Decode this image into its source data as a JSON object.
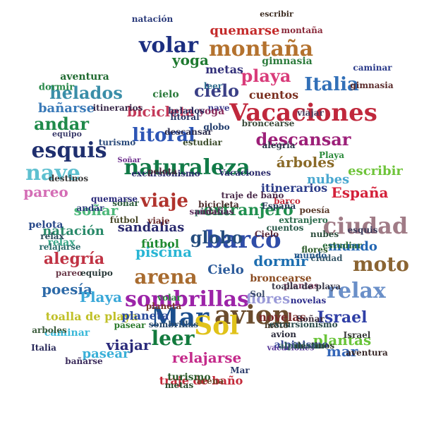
{
  "words": [
    {
      "text": "Vacaciones",
      "color": "#c0283c"
    },
    {
      "text": "naturaleza",
      "color": "#117a47"
    },
    {
      "text": "sombrillas",
      "color": "#9c23a8"
    },
    {
      "text": "avion",
      "color": "#6b4d2e"
    },
    {
      "text": "ciudad",
      "color": "#a07b86"
    },
    {
      "text": "Mar",
      "color": "#1b4e8d"
    },
    {
      "text": "litoral",
      "color": "#2d55b5"
    },
    {
      "text": "barco",
      "color": "#2f4da8"
    },
    {
      "text": "montaña",
      "color": "#b4722e"
    },
    {
      "text": "descansar",
      "color": "#9c1f78"
    },
    {
      "text": "esquis",
      "color": "#1f2f6e"
    },
    {
      "text": "nave",
      "color": "#5ec0d0"
    },
    {
      "text": "volar",
      "color": "#1b2e80"
    },
    {
      "text": "arena",
      "color": "#a86b2f"
    },
    {
      "text": "leer",
      "color": "#127a3d"
    },
    {
      "text": "Sol",
      "color": "#e0c21a"
    },
    {
      "text": "relax",
      "color": "#6a8fc8"
    },
    {
      "text": "moto",
      "color": "#8a6432"
    },
    {
      "text": "viaje",
      "color": "#b0332d"
    },
    {
      "text": "globo",
      "color": "#254d7e"
    },
    {
      "text": "playa",
      "color": "#d93c7a"
    },
    {
      "text": "Italia",
      "color": "#3270b8"
    },
    {
      "text": "cielo",
      "color": "#3a3f86"
    },
    {
      "text": "helados",
      "color": "#3a8ea8"
    },
    {
      "text": "andar",
      "color": "#1f8a4a"
    },
    {
      "text": "bicicleta",
      "color": "#c43a5a"
    },
    {
      "text": "pareo",
      "color": "#d46db5"
    },
    {
      "text": "alegría",
      "color": "#c03344"
    },
    {
      "text": "Israel",
      "color": "#2f3fa6"
    },
    {
      "text": "piscina",
      "color": "#28b5d4"
    },
    {
      "text": "flores",
      "color": "#9a9ad8"
    },
    {
      "text": "dormir",
      "color": "#1d6eb0"
    },
    {
      "text": "extranjero",
      "color": "#1f8f4e"
    },
    {
      "text": "mundo",
      "color": "#2266b3"
    },
    {
      "text": "España",
      "color": "#d4213a"
    },
    {
      "text": "escribir",
      "color": "#6fc43a"
    },
    {
      "text": "yoga",
      "color": "#1f7a30"
    },
    {
      "text": "metas",
      "color": "#32307a"
    },
    {
      "text": "quemarse",
      "color": "#c42a2a"
    },
    {
      "text": "gimnasia",
      "color": "#2a7a3a"
    },
    {
      "text": "cuentos",
      "color": "#7a2f1f"
    },
    {
      "text": "bañarse",
      "color": "#3a7ab8"
    },
    {
      "text": "árboles",
      "color": "#8a6a28"
    },
    {
      "text": "nubes",
      "color": "#4aa8d0"
    },
    {
      "text": "sandalias",
      "color": "#2a2a6e"
    },
    {
      "text": "itinerarios",
      "color": "#2d3d8a"
    },
    {
      "text": "soñar",
      "color": "#4db87a"
    },
    {
      "text": "fútbol",
      "color": "#1f8a30"
    },
    {
      "text": "Cielo",
      "color": "#2b5a9a"
    },
    {
      "text": "broncearse",
      "color": "#8a4a1f"
    },
    {
      "text": "poesía",
      "color": "#2d6aa8"
    },
    {
      "text": "Playa",
      "color": "#3aa8d8"
    },
    {
      "text": "viajar",
      "color": "#2a2a7a"
    },
    {
      "text": "plantas",
      "color": "#6ac43a"
    },
    {
      "text": "mar",
      "color": "#3466b8"
    },
    {
      "text": "relajarse",
      "color": "#c42a8a"
    },
    {
      "text": "pasear",
      "color": "#3ab0d8"
    },
    {
      "text": "natación",
      "color": "#2a8a6a"
    },
    {
      "text": "novelas",
      "color": "#7a2a2a"
    },
    {
      "text": "alpinismo",
      "color": "#3a4a9a"
    },
    {
      "text": "traje de baño",
      "color": "#c42a3a"
    },
    {
      "text": "toalla de playa",
      "color": "#c0c028"
    },
    {
      "text": "aventura",
      "color": "#1f6a30"
    },
    {
      "text": "turismo",
      "color": "#2a5a2a"
    },
    {
      "text": "destinos",
      "color": "#3a3a3a"
    },
    {
      "text": "excursionismo",
      "color": "#2a2a6a"
    },
    {
      "text": "Soñar",
      "color": "#6a2a8a"
    },
    {
      "text": "relax",
      "color": "#3aa88a"
    },
    {
      "text": "caminar",
      "color": "#3ab8d8"
    },
    {
      "text": "planeta",
      "color": "#2a4a9a"
    },
    {
      "text": "pelota",
      "color": "#2a4a8a"
    },
    {
      "text": "estudiar",
      "color": "#2a6a3a"
    },
    {
      "text": "equipo",
      "color": "#3a3a6a"
    },
    {
      "text": "vacaciones",
      "color": "#5a3a9a"
    },
    {
      "text": "dormir",
      "color": "#2a8a4a"
    },
    {
      "text": "escribir",
      "color": "#3a2a1f"
    },
    {
      "text": "ciudad",
      "color": "#3a5a6a"
    },
    {
      "text": "leer",
      "color": "#2a6a8a"
    },
    {
      "text": "nave",
      "color": "#3a3a8a"
    },
    {
      "text": "andar",
      "color": "#2a3a7a"
    },
    {
      "text": "arena",
      "color": "#6a4a2a"
    },
    {
      "text": "Mar",
      "color": "#2a3a6a"
    },
    {
      "text": "cielo",
      "color": "#2a7a3a"
    },
    {
      "text": "globo",
      "color": "#1f3a6a"
    },
    {
      "text": "yoga",
      "color": "#8a2a5a"
    },
    {
      "text": "Playa",
      "color": "#2a8a3a"
    },
    {
      "text": "Sol",
      "color": "#3a4a6a"
    },
    {
      "text": "viaje",
      "color": "#6a2a2a"
    },
    {
      "text": "barco",
      "color": "#c42a3a"
    },
    {
      "text": "litoral",
      "color": "#2a3a6a"
    },
    {
      "text": "descansar",
      "color": "#2a2a4a"
    },
    {
      "text": "volar",
      "color": "#2a8a3a"
    },
    {
      "text": "moto",
      "color": "#4a3a2a"
    },
    {
      "text": "avion",
      "color": "#2a2a3a"
    },
    {
      "text": "Israel",
      "color": "#3a3a3a"
    },
    {
      "text": "flores",
      "color": "#2a5a2a"
    },
    {
      "text": "Vacaciones",
      "color": "#2a2a6a"
    },
    {
      "text": "metas",
      "color": "#2a4a2a"
    },
    {
      "text": "montaña",
      "color": "#8a2a3a"
    },
    {
      "text": "relajarse",
      "color": "#2a6a6a"
    },
    {
      "text": "España",
      "color": "#2a3a5a"
    },
    {
      "text": "bañarse",
      "color": "#3a2a5a"
    },
    {
      "text": "helados",
      "color": "#2a2a5a"
    },
    {
      "text": "pasear",
      "color": "#2a7a2a"
    },
    {
      "text": "Italia",
      "color": "#2a2a5a"
    },
    {
      "text": "plantas",
      "color": "#6a2a4a"
    },
    {
      "text": "mundo",
      "color": "#2a5a8a"
    },
    {
      "text": "planeta",
      "color": "#7a3a2a"
    },
    {
      "text": "aventura",
      "color": "#3a2a2a"
    },
    {
      "text": "turismo",
      "color": "#2a4a7a"
    },
    {
      "text": "destinos",
      "color": "#2a3a2a"
    },
    {
      "text": "gimnasia",
      "color": "#5a2a2a"
    },
    {
      "text": "relax",
      "color": "#2a4a5a"
    },
    {
      "text": "soñar",
      "color": "#2a5a3a"
    },
    {
      "text": "viajar",
      "color": "#4a3a5a"
    },
    {
      "text": "alegría",
      "color": "#2a3a4a"
    },
    {
      "text": "nubes",
      "color": "#2a4a3a"
    },
    {
      "text": "cuentos",
      "color": "#2a5a4a"
    },
    {
      "text": "sombrillas",
      "color": "#2a4a6a"
    },
    {
      "text": "pareo",
      "color": "#6a3a4a"
    },
    {
      "text": "arboles",
      "color": "#3a5a3a"
    },
    {
      "text": "natación",
      "color": "#2a3a7a"
    },
    {
      "text": "poesía",
      "color": "#5a3a2a"
    },
    {
      "text": "esquis",
      "color": "#3a3a5a"
    },
    {
      "text": "itinerarios",
      "color": "#3a2a4a"
    },
    {
      "text": "excursionismo",
      "color": "#2a4a4a"
    },
    {
      "text": "pelota",
      "color": "#4a2a3a"
    },
    {
      "text": "equipo",
      "color": "#2a3a3a"
    },
    {
      "text": "broncearse",
      "color": "#3a4a3a"
    },
    {
      "text": "bicicleta",
      "color": "#4a2a2a"
    },
    {
      "text": "caminar",
      "color": "#2a3a8a"
    },
    {
      "text": "extranjero",
      "color": "#2a6a4a"
    },
    {
      "text": "toalla de playa",
      "color": "#3a3a4a"
    },
    {
      "text": "quemarse",
      "color": "#2a2a7a"
    },
    {
      "text": "estudiar",
      "color": "#3a4a2a"
    },
    {
      "text": "novelas",
      "color": "#2a2a8a"
    },
    {
      "text": "fútbol",
      "color": "#4a4a2a"
    },
    {
      "text": "Cielo",
      "color": "#5a2a3a"
    },
    {
      "text": "alpinismo",
      "color": "#2a5a5a"
    },
    {
      "text": "Soñar",
      "color": "#3a2a3a"
    },
    {
      "text": "traje de baño",
      "color": "#4a2a4a"
    },
    {
      "text": "mar",
      "color": "#5a5a2a"
    },
    {
      "text": "piscina",
      "color": "#2a6a5a"
    },
    {
      "text": "sandalias",
      "color": "#5a2a5a"
    }
  ]
}
